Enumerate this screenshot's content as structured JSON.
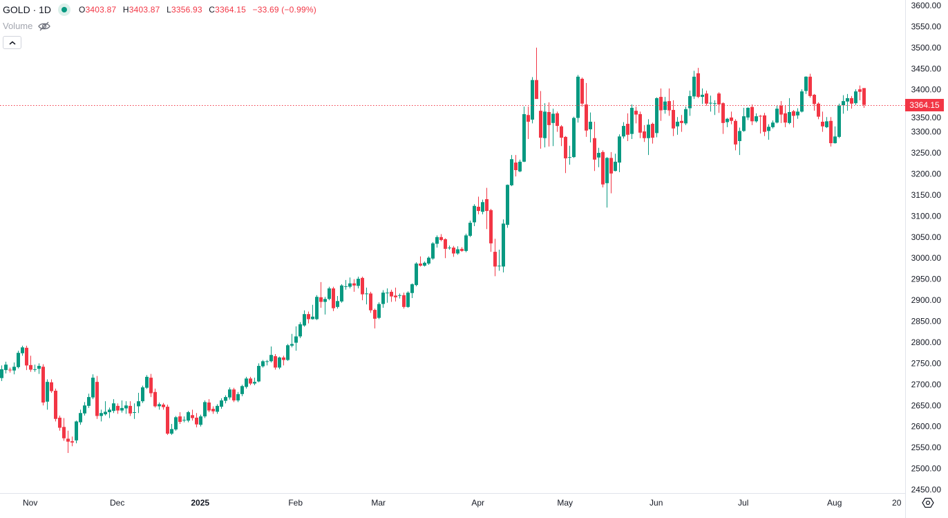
{
  "header": {
    "symbol": "GOLD · 1D",
    "status_color": "#089981",
    "ohlc": {
      "o_label": "O",
      "o": "3403.87",
      "h_label": "H",
      "h": "3403.87",
      "l_label": "L",
      "l": "3356.93",
      "c_label": "C",
      "c": "3364.15",
      "change": "−33.69 (−0.99%)"
    },
    "volume_label": "Volume",
    "volume_icon": "eye-off-icon",
    "collapse_icon": "chevron-up-icon"
  },
  "colors": {
    "up": "#089981",
    "down": "#f23645",
    "last_price_line": "#f23645"
  },
  "last_price_label": "3364.15",
  "settings_icon": "gear-icon",
  "chart_data": {
    "type": "candlestick",
    "title": "GOLD · 1D",
    "ylim": [
      2450,
      3600
    ],
    "grid": false,
    "last_price": 3364.15,
    "y_ticks": [
      "3600.00",
      "3550.00",
      "3500.00",
      "3450.00",
      "3400.00",
      "3350.00",
      "3300.00",
      "3250.00",
      "3200.00",
      "3150.00",
      "3100.00",
      "3050.00",
      "3000.00",
      "2950.00",
      "2900.00",
      "2850.00",
      "2800.00",
      "2750.00",
      "2700.00",
      "2650.00",
      "2600.00",
      "2550.00",
      "2500.00",
      "2450.00"
    ],
    "x_ticks": [
      {
        "label": "Nov",
        "index": 7,
        "bold": false
      },
      {
        "label": "Dec",
        "index": 28,
        "bold": false
      },
      {
        "label": "2025",
        "index": 48,
        "bold": true
      },
      {
        "label": "Feb",
        "index": 71,
        "bold": false
      },
      {
        "label": "Mar",
        "index": 91,
        "bold": false
      },
      {
        "label": "Apr",
        "index": 115,
        "bold": false
      },
      {
        "label": "May",
        "index": 136,
        "bold": false
      },
      {
        "label": "Jun",
        "index": 158,
        "bold": false
      },
      {
        "label": "Jul",
        "index": 179,
        "bold": false
      },
      {
        "label": "Aug",
        "index": 201,
        "bold": false
      },
      {
        "label": "20",
        "index": 216,
        "bold": false
      }
    ],
    "candles_ohlc": [
      [
        2715,
        2745,
        2708,
        2736
      ],
      [
        2734,
        2754,
        2726,
        2747
      ],
      [
        2735,
        2740,
        2728,
        2734
      ],
      [
        2733,
        2752,
        2724,
        2742
      ],
      [
        2741,
        2780,
        2738,
        2775
      ],
      [
        2774,
        2792,
        2768,
        2788
      ],
      [
        2787,
        2792,
        2734,
        2745
      ],
      [
        2746,
        2768,
        2730,
        2735
      ],
      [
        2736,
        2747,
        2730,
        2736
      ],
      [
        2737,
        2750,
        2725,
        2744
      ],
      [
        2742,
        2748,
        2650,
        2657
      ],
      [
        2659,
        2712,
        2640,
        2706
      ],
      [
        2705,
        2712,
        2680,
        2684
      ],
      [
        2685,
        2690,
        2612,
        2618
      ],
      [
        2621,
        2626,
        2590,
        2597
      ],
      [
        2599,
        2620,
        2566,
        2572
      ],
      [
        2571,
        2590,
        2537,
        2564
      ],
      [
        2565,
        2576,
        2553,
        2562
      ],
      [
        2567,
        2614,
        2560,
        2612
      ],
      [
        2610,
        2640,
        2604,
        2632
      ],
      [
        2631,
        2658,
        2626,
        2650
      ],
      [
        2649,
        2678,
        2644,
        2670
      ],
      [
        2669,
        2724,
        2665,
        2716
      ],
      [
        2706,
        2720,
        2618,
        2625
      ],
      [
        2625,
        2640,
        2612,
        2632
      ],
      [
        2629,
        2660,
        2626,
        2635
      ],
      [
        2634,
        2645,
        2620,
        2640
      ],
      [
        2637,
        2665,
        2632,
        2655
      ],
      [
        2649,
        2655,
        2630,
        2638
      ],
      [
        2638,
        2662,
        2633,
        2644
      ],
      [
        2643,
        2660,
        2630,
        2650
      ],
      [
        2649,
        2660,
        2625,
        2631
      ],
      [
        2634,
        2655,
        2618,
        2634
      ],
      [
        2648,
        2680,
        2632,
        2660
      ],
      [
        2660,
        2697,
        2656,
        2693
      ],
      [
        2692,
        2722,
        2689,
        2718
      ],
      [
        2716,
        2725,
        2670,
        2679
      ],
      [
        2682,
        2690,
        2645,
        2648
      ],
      [
        2648,
        2657,
        2640,
        2653
      ],
      [
        2652,
        2656,
        2640,
        2646
      ],
      [
        2647,
        2652,
        2580,
        2583
      ],
      [
        2583,
        2606,
        2580,
        2594
      ],
      [
        2593,
        2625,
        2590,
        2622
      ],
      [
        2624,
        2634,
        2606,
        2611
      ],
      [
        2616,
        2624,
        2610,
        2616
      ],
      [
        2614,
        2637,
        2610,
        2634
      ],
      [
        2627,
        2640,
        2614,
        2620
      ],
      [
        2621,
        2632,
        2598,
        2605
      ],
      [
        2604,
        2628,
        2600,
        2624
      ],
      [
        2624,
        2662,
        2620,
        2658
      ],
      [
        2657,
        2665,
        2634,
        2638
      ],
      [
        2642,
        2648,
        2630,
        2636
      ],
      [
        2635,
        2653,
        2630,
        2649
      ],
      [
        2647,
        2667,
        2642,
        2662
      ],
      [
        2661,
        2674,
        2655,
        2670
      ],
      [
        2669,
        2693,
        2664,
        2688
      ],
      [
        2688,
        2692,
        2658,
        2662
      ],
      [
        2662,
        2682,
        2658,
        2677
      ],
      [
        2677,
        2699,
        2672,
        2696
      ],
      [
        2694,
        2718,
        2690,
        2714
      ],
      [
        2714,
        2718,
        2698,
        2702
      ],
      [
        2702,
        2716,
        2698,
        2706
      ],
      [
        2707,
        2750,
        2705,
        2744
      ],
      [
        2743,
        2758,
        2740,
        2755
      ],
      [
        2755,
        2758,
        2745,
        2755
      ],
      [
        2755,
        2790,
        2752,
        2770
      ],
      [
        2767,
        2772,
        2735,
        2740
      ],
      [
        2740,
        2766,
        2736,
        2764
      ],
      [
        2764,
        2768,
        2745,
        2758
      ],
      [
        2758,
        2796,
        2756,
        2793
      ],
      [
        2792,
        2820,
        2788,
        2796
      ],
      [
        2799,
        2838,
        2780,
        2814
      ],
      [
        2814,
        2848,
        2810,
        2843
      ],
      [
        2840,
        2876,
        2837,
        2867
      ],
      [
        2867,
        2873,
        2845,
        2855
      ],
      [
        2855,
        2889,
        2854,
        2861
      ],
      [
        2855,
        2912,
        2853,
        2908
      ],
      [
        2907,
        2943,
        2882,
        2896
      ],
      [
        2896,
        2908,
        2866,
        2903
      ],
      [
        2903,
        2932,
        2900,
        2928
      ],
      [
        2928,
        2932,
        2874,
        2881
      ],
      [
        2884,
        2910,
        2880,
        2898
      ],
      [
        2897,
        2938,
        2894,
        2935
      ],
      [
        2933,
        2948,
        2925,
        2933
      ],
      [
        2932,
        2954,
        2928,
        2940
      ],
      [
        2940,
        2950,
        2920,
        2935
      ],
      [
        2934,
        2956,
        2928,
        2951
      ],
      [
        2953,
        2956,
        2900,
        2914
      ],
      [
        2916,
        2930,
        2890,
        2916
      ],
      [
        2916,
        2920,
        2870,
        2876
      ],
      [
        2877,
        2880,
        2833,
        2856
      ],
      [
        2858,
        2895,
        2855,
        2891
      ],
      [
        2891,
        2924,
        2882,
        2918
      ],
      [
        2918,
        2928,
        2894,
        2918
      ],
      [
        2920,
        2925,
        2896,
        2909
      ],
      [
        2911,
        2930,
        2897,
        2907
      ],
      [
        2912,
        2916,
        2904,
        2912
      ],
      [
        2912,
        2918,
        2880,
        2884
      ],
      [
        2884,
        2921,
        2882,
        2918
      ],
      [
        2917,
        2940,
        2905,
        2938
      ],
      [
        2936,
        2990,
        2933,
        2987
      ],
      [
        2987,
        3004,
        2980,
        2982
      ],
      [
        2982,
        2992,
        2980,
        2989
      ],
      [
        2987,
        3004,
        2984,
        3001
      ],
      [
        2999,
        3038,
        2996,
        3035
      ],
      [
        3034,
        3054,
        3025,
        3050
      ],
      [
        3050,
        3057,
        3040,
        3043
      ],
      [
        3045,
        3047,
        3000,
        3022
      ],
      [
        3025,
        3030,
        3020,
        3025
      ],
      [
        3025,
        3029,
        3003,
        3011
      ],
      [
        3011,
        3028,
        3008,
        3021
      ],
      [
        3022,
        3026,
        3015,
        3017
      ],
      [
        3017,
        3058,
        3014,
        3054
      ],
      [
        3053,
        3089,
        3050,
        3084
      ],
      [
        3085,
        3128,
        3076,
        3124
      ],
      [
        3122,
        3146,
        3104,
        3112
      ],
      [
        3110,
        3139,
        3104,
        3133
      ],
      [
        3140,
        3167,
        3069,
        3112
      ],
      [
        3114,
        3117,
        3015,
        3035
      ],
      [
        3015,
        3046,
        2957,
        2980
      ],
      [
        2982,
        3020,
        2970,
        2982
      ],
      [
        2980,
        3092,
        2966,
        3082
      ],
      [
        3079,
        3175,
        3072,
        3174
      ],
      [
        3173,
        3245,
        3171,
        3235
      ],
      [
        3227,
        3245,
        3194,
        3209
      ],
      [
        3206,
        3234,
        3204,
        3229
      ],
      [
        3229,
        3360,
        3228,
        3342
      ],
      [
        3340,
        3360,
        3283,
        3324
      ],
      [
        3329,
        3430,
        3320,
        3423
      ],
      [
        3423,
        3500,
        3415,
        3378
      ],
      [
        3350,
        3397,
        3260,
        3286
      ],
      [
        3285,
        3368,
        3263,
        3348
      ],
      [
        3347,
        3370,
        3265,
        3316
      ],
      [
        3321,
        3355,
        3266,
        3343
      ],
      [
        3344,
        3348,
        3300,
        3314
      ],
      [
        3313,
        3316,
        3266,
        3286
      ],
      [
        3288,
        3290,
        3202,
        3237
      ],
      [
        3240,
        3267,
        3222,
        3240
      ],
      [
        3240,
        3336,
        3238,
        3333
      ],
      [
        3333,
        3435,
        3322,
        3431
      ],
      [
        3426,
        3429,
        3360,
        3367
      ],
      [
        3365,
        3416,
        3288,
        3303
      ],
      [
        3306,
        3346,
        3275,
        3324
      ],
      [
        3285,
        3324,
        3207,
        3234
      ],
      [
        3239,
        3262,
        3216,
        3250
      ],
      [
        3252,
        3256,
        3168,
        3175
      ],
      [
        3178,
        3240,
        3120,
        3238
      ],
      [
        3238,
        3252,
        3154,
        3201
      ],
      [
        3207,
        3248,
        3206,
        3229
      ],
      [
        3227,
        3294,
        3204,
        3289
      ],
      [
        3289,
        3323,
        3284,
        3314
      ],
      [
        3319,
        3344,
        3278,
        3293
      ],
      [
        3295,
        3365,
        3283,
        3357
      ],
      [
        3350,
        3360,
        3320,
        3341
      ],
      [
        3342,
        3348,
        3285,
        3298
      ],
      [
        3301,
        3316,
        3276,
        3285
      ],
      [
        3285,
        3330,
        3245,
        3317
      ],
      [
        3319,
        3322,
        3272,
        3286
      ],
      [
        3297,
        3382,
        3287,
        3380
      ],
      [
        3383,
        3403,
        3326,
        3351
      ],
      [
        3352,
        3383,
        3343,
        3372
      ],
      [
        3373,
        3403,
        3338,
        3351
      ],
      [
        3352,
        3375,
        3290,
        3308
      ],
      [
        3313,
        3335,
        3293,
        3324
      ],
      [
        3326,
        3340,
        3300,
        3321
      ],
      [
        3320,
        3360,
        3316,
        3354
      ],
      [
        3356,
        3398,
        3338,
        3385
      ],
      [
        3384,
        3445,
        3378,
        3431
      ],
      [
        3439,
        3452,
        3380,
        3383
      ],
      [
        3383,
        3403,
        3366,
        3388
      ],
      [
        3391,
        3398,
        3362,
        3367
      ],
      [
        3369,
        3386,
        3348,
        3369
      ],
      [
        3368,
        3375,
        3340,
        3368
      ],
      [
        3391,
        3394,
        3345,
        3365
      ],
      [
        3368,
        3370,
        3295,
        3321
      ],
      [
        3323,
        3333,
        3311,
        3331
      ],
      [
        3334,
        3348,
        3318,
        3326
      ],
      [
        3326,
        3330,
        3256,
        3270
      ],
      [
        3278,
        3310,
        3245,
        3302
      ],
      [
        3302,
        3357,
        3300,
        3337
      ],
      [
        3334,
        3358,
        3328,
        3357
      ],
      [
        3359,
        3365,
        3316,
        3325
      ],
      [
        3325,
        3344,
        3322,
        3337
      ],
      [
        3338,
        3340,
        3296,
        3337
      ],
      [
        3339,
        3345,
        3290,
        3300
      ],
      [
        3302,
        3318,
        3281,
        3312
      ],
      [
        3311,
        3327,
        3308,
        3322
      ],
      [
        3322,
        3362,
        3320,
        3355
      ],
      [
        3362,
        3373,
        3321,
        3341
      ],
      [
        3344,
        3362,
        3311,
        3322
      ],
      [
        3321,
        3380,
        3318,
        3347
      ],
      [
        3349,
        3352,
        3310,
        3338
      ],
      [
        3339,
        3356,
        3331,
        3348
      ],
      [
        3348,
        3401,
        3346,
        3396
      ],
      [
        3397,
        3432,
        3390,
        3431
      ],
      [
        3431,
        3438,
        3381,
        3385
      ],
      [
        3388,
        3390,
        3350,
        3366
      ],
      [
        3367,
        3370,
        3330,
        3336
      ],
      [
        3324,
        3348,
        3300,
        3313
      ],
      [
        3311,
        3335,
        3309,
        3325
      ],
      [
        3326,
        3335,
        3265,
        3273
      ],
      [
        3273,
        3313,
        3272,
        3289
      ],
      [
        3288,
        3367,
        3285,
        3362
      ],
      [
        3363,
        3387,
        3343,
        3373
      ],
      [
        3372,
        3390,
        3350,
        3380
      ],
      [
        3380,
        3385,
        3355,
        3367
      ],
      [
        3368,
        3401,
        3364,
        3396
      ],
      [
        3401,
        3410,
        3375,
        3395
      ],
      [
        3403.87,
        3403.87,
        3356.93,
        3364.15
      ]
    ]
  }
}
